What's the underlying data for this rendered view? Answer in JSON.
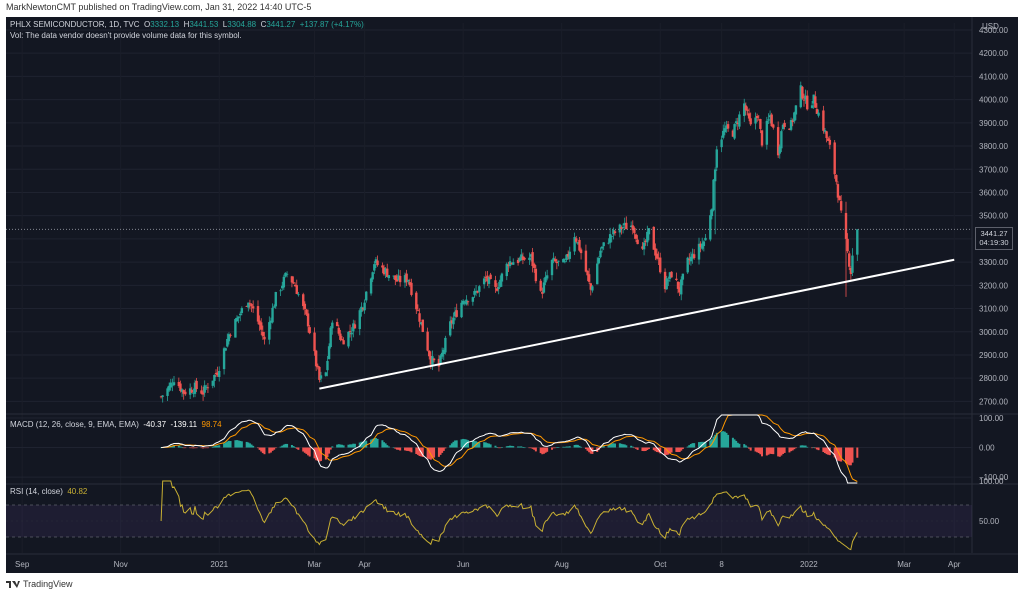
{
  "publish_line": "MarkNewtonCMT published on TradingView.com, Jan 31, 2022 14:40 UTC-5",
  "header": {
    "symbol": "PHLX SEMICONDUCTOR, 1D, TVC",
    "o_label": "O",
    "o_val": "3332.13",
    "h_label": "H",
    "h_val": "3441.53",
    "l_label": "L",
    "l_val": "3304.88",
    "c_label": "C",
    "c_val": "3441.27",
    "change": "+137.87 (+4.17%)",
    "vol_note": "Vol: The data vendor doesn't provide volume data for this symbol."
  },
  "currency": "USD",
  "price_tag": {
    "value": "3441.27",
    "countdown": "04:19:30"
  },
  "macd_header": {
    "label": "MACD (12, 26, close, 9, EMA, EMA)",
    "macd": "-40.37",
    "signal": "-139.11",
    "hist": "98.74"
  },
  "rsi_header": {
    "label": "RSI (14, close)",
    "value": "40.82"
  },
  "footer": {
    "brand": "TradingView"
  },
  "colors": {
    "background": "#131722",
    "up": "#26a69a",
    "down": "#ef5350",
    "rsi": "#c8b033",
    "macd_line": "#ffffff",
    "signal_line": "#ff9800",
    "trendline": "#ffffff"
  },
  "chart_data": [
    {
      "type": "candlestick",
      "title": "PHLX SEMICONDUCTOR, 1D, TVC",
      "ylim": [
        2650,
        4330
      ],
      "yticks": [
        2700,
        2800,
        2900,
        3000,
        3100,
        3200,
        3300,
        3400,
        3500,
        3600,
        3700,
        3800,
        3900,
        4000,
        4100,
        4200,
        4300
      ],
      "ytick_labels": [
        "2700.00",
        "2800.00",
        "2900.00",
        "3000.00",
        "3100.00",
        "3200.00",
        "3300.00",
        "3400.00",
        "3500.00",
        "3600.00",
        "3700.00",
        "3800.00",
        "3900.00",
        "4000.00",
        "4100.00",
        "4200.00",
        "4300.00"
      ],
      "xtick_labels": [
        "Sep",
        "Nov",
        "2021",
        "Mar",
        "Apr",
        "Jun",
        "Aug",
        "Oct",
        "8",
        "2022",
        "Mar",
        "Apr"
      ],
      "xrange": [
        "2020-08-22",
        "2022-04-12"
      ],
      "visible_from": "2020-11-26",
      "current_price": 3441.27,
      "trendline": {
        "start": [
          "2021-03-04",
          2755
        ],
        "end": [
          "2022-04-01",
          3310
        ]
      },
      "close_keys": [
        [
          "2020-11-26",
          2720
        ],
        [
          "2020-12-01",
          2760
        ],
        [
          "2020-12-04",
          2800
        ],
        [
          "2020-12-10",
          2740
        ],
        [
          "2020-12-17",
          2760
        ],
        [
          "2020-12-22",
          2740
        ],
        [
          "2020-12-31",
          2830
        ],
        [
          "2021-01-07",
          2990
        ],
        [
          "2021-01-14",
          3080
        ],
        [
          "2021-01-19",
          3140
        ],
        [
          "2021-01-26",
          3030
        ],
        [
          "2021-01-29",
          2960
        ],
        [
          "2021-02-05",
          3150
        ],
        [
          "2021-02-12",
          3250
        ],
        [
          "2021-02-17",
          3200
        ],
        [
          "2021-02-25",
          3040
        ],
        [
          "2021-03-04",
          2790
        ],
        [
          "2021-03-08",
          2820
        ],
        [
          "2021-03-12",
          3060
        ],
        [
          "2021-03-18",
          2960
        ],
        [
          "2021-03-25",
          3020
        ],
        [
          "2021-03-31",
          3120
        ],
        [
          "2021-04-07",
          3300
        ],
        [
          "2021-04-14",
          3260
        ],
        [
          "2021-04-21",
          3220
        ],
        [
          "2021-04-28",
          3230
        ],
        [
          "2021-05-05",
          3060
        ],
        [
          "2021-05-12",
          2880
        ],
        [
          "2021-05-17",
          2850
        ],
        [
          "2021-05-24",
          3030
        ],
        [
          "2021-06-01",
          3140
        ],
        [
          "2021-06-08",
          3160
        ],
        [
          "2021-06-15",
          3230
        ],
        [
          "2021-06-21",
          3180
        ],
        [
          "2021-06-29",
          3300
        ],
        [
          "2021-07-06",
          3310
        ],
        [
          "2021-07-13",
          3320
        ],
        [
          "2021-07-19",
          3160
        ],
        [
          "2021-07-26",
          3300
        ],
        [
          "2021-08-03",
          3290
        ],
        [
          "2021-08-09",
          3420
        ],
        [
          "2021-08-13",
          3340
        ],
        [
          "2021-08-19",
          3180
        ],
        [
          "2021-08-25",
          3350
        ],
        [
          "2021-08-31",
          3410
        ],
        [
          "2021-09-07",
          3450
        ],
        [
          "2021-09-14",
          3460
        ],
        [
          "2021-09-20",
          3340
        ],
        [
          "2021-09-24",
          3430
        ],
        [
          "2021-09-30",
          3300
        ],
        [
          "2021-10-04",
          3200
        ],
        [
          "2021-10-08",
          3250
        ],
        [
          "2021-10-13",
          3180
        ],
        [
          "2021-10-18",
          3300
        ],
        [
          "2021-10-25",
          3360
        ],
        [
          "2021-10-29",
          3400
        ],
        [
          "2021-11-02",
          3550
        ],
        [
          "2021-11-05",
          3800
        ],
        [
          "2021-11-10",
          3870
        ],
        [
          "2021-11-15",
          3860
        ],
        [
          "2021-11-22",
          3980
        ],
        [
          "2021-11-26",
          3880
        ],
        [
          "2021-11-30",
          3940
        ],
        [
          "2021-12-03",
          3820
        ],
        [
          "2021-12-08",
          3930
        ],
        [
          "2021-12-13",
          3780
        ],
        [
          "2021-12-16",
          3900
        ],
        [
          "2021-12-21",
          3890
        ],
        [
          "2021-12-27",
          4040
        ],
        [
          "2021-12-31",
          3980
        ],
        [
          "2022-01-04",
          4000
        ],
        [
          "2022-01-10",
          3880
        ],
        [
          "2022-01-14",
          3790
        ],
        [
          "2022-01-18",
          3650
        ],
        [
          "2022-01-21",
          3500
        ],
        [
          "2022-01-24",
          3380
        ],
        [
          "2022-01-27",
          3260
        ],
        [
          "2022-01-28",
          3332
        ],
        [
          "2022-01-31",
          3441
        ]
      ]
    },
    {
      "type": "line",
      "title": "MACD (12, 26, close, 9, EMA, EMA)",
      "series": [
        {
          "name": "MACD"
        },
        {
          "name": "Signal"
        },
        {
          "name": "Histogram"
        }
      ],
      "yticks": [
        100,
        0,
        -100
      ],
      "ytick_labels": [
        "100.00",
        "0.00",
        "−100.00"
      ],
      "last": {
        "macd": -40.37,
        "signal": -139.11,
        "hist": 98.74
      }
    },
    {
      "type": "line",
      "title": "RSI (14, close)",
      "series": [
        {
          "name": "RSI"
        }
      ],
      "ylim": [
        0,
        100
      ],
      "bands": [
        30,
        70
      ],
      "yticks": [
        100,
        50
      ],
      "ytick_labels": [
        "100.00",
        "50.00"
      ],
      "last": 40.82
    }
  ]
}
